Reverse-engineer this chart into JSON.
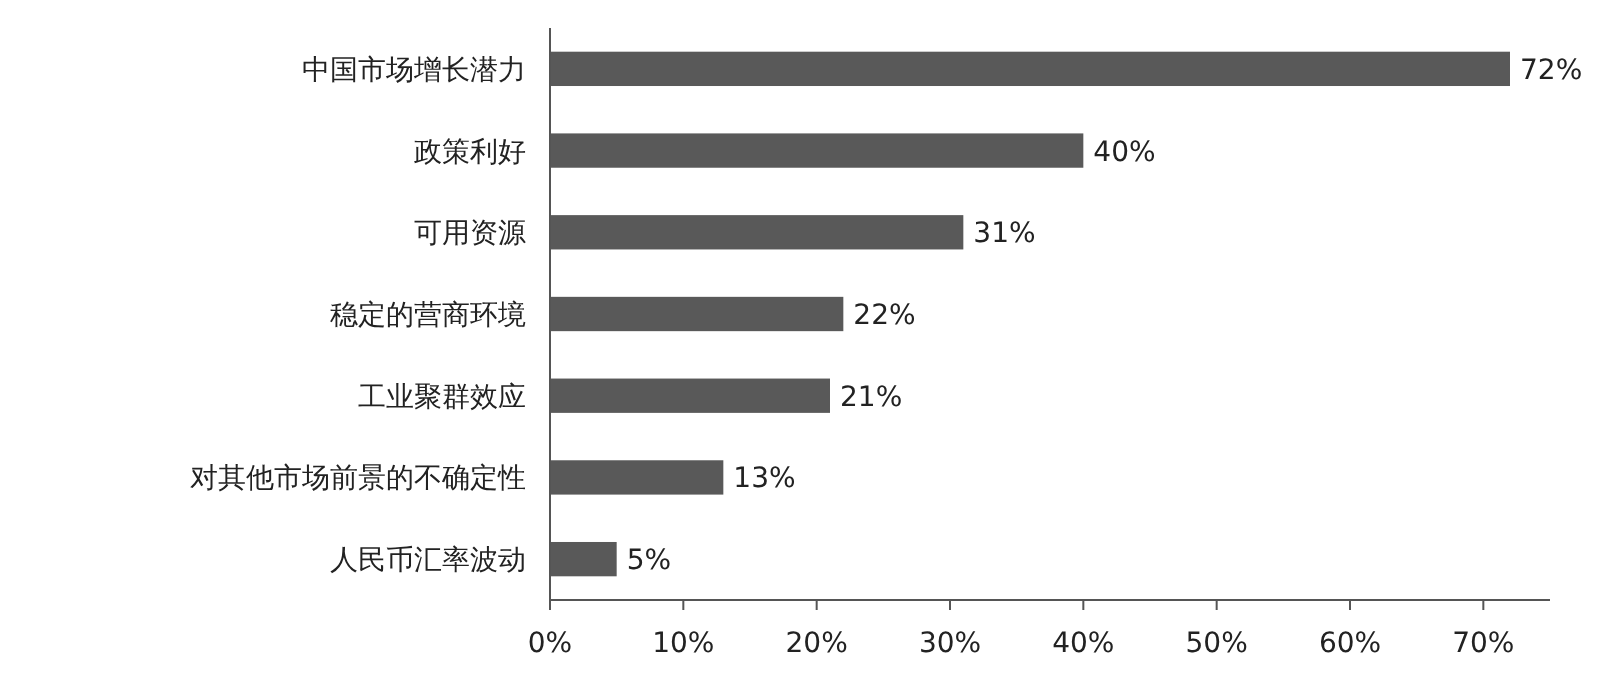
{
  "chart_data": {
    "type": "bar",
    "orientation": "horizontal",
    "categories": [
      "中国市场增长潜力",
      "政策利好",
      "可用资源",
      "稳定的营商环境",
      "工业聚群效应",
      "对其他市场前景的不确定性",
      "人民币汇率波动"
    ],
    "values": [
      72,
      40,
      31,
      22,
      21,
      13,
      5
    ],
    "value_labels": [
      "72%",
      "40%",
      "31%",
      "22%",
      "21%",
      "13%",
      "5%"
    ],
    "color": "#595959",
    "xlim": [
      0,
      75
    ],
    "xticks": [
      {
        "value": 0,
        "label": "0%"
      },
      {
        "value": 10,
        "label": "10%"
      },
      {
        "value": 20,
        "label": "20%"
      },
      {
        "value": 30,
        "label": "30%"
      },
      {
        "value": 40,
        "label": "40%"
      },
      {
        "value": 50,
        "label": "50%"
      },
      {
        "value": 60,
        "label": "60%"
      },
      {
        "value": 70,
        "label": "70%"
      }
    ]
  }
}
